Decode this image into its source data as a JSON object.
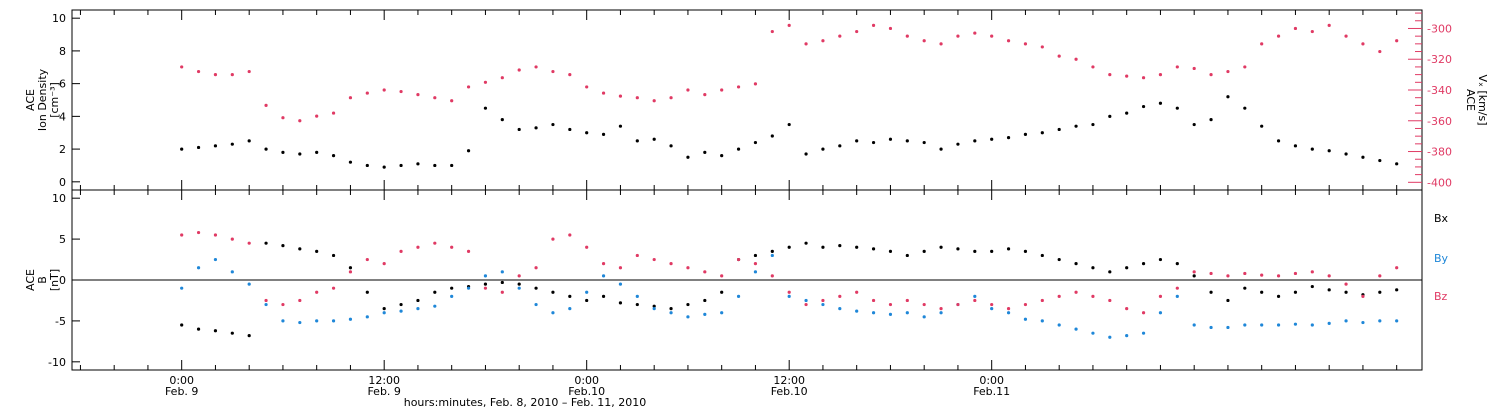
{
  "chart_data": [
    {
      "type": "scatter",
      "panel": "top",
      "ylabel_left": [
        "ACE",
        "Ion Density",
        "[cm⁻³]"
      ],
      "ylabel_right": [
        "ACE",
        "Vₓ [km/s]"
      ],
      "ylim_left": [
        -0.5,
        10.5
      ],
      "yticks_left": [
        "0",
        "2",
        "4",
        "6",
        "8",
        "10"
      ],
      "ylim_right": [
        -405,
        -288
      ],
      "yticks_right": [
        "-300",
        "-320",
        "-340",
        "-360",
        "-380",
        "-400"
      ],
      "grid": false,
      "series": [
        {
          "role": "ion density (left axis)",
          "color": "#000000",
          "x_hours": [
            0,
            1,
            2,
            3,
            4,
            5,
            6,
            7,
            8,
            9,
            10,
            11,
            12,
            13,
            14,
            15,
            16,
            17,
            18,
            19,
            20,
            21,
            22,
            23,
            24,
            25,
            26,
            27,
            28,
            29,
            30,
            31,
            32,
            33,
            34,
            35,
            36,
            37,
            38,
            39,
            40,
            41,
            42,
            43,
            44,
            45,
            46,
            47,
            48,
            49,
            50,
            51,
            52,
            53,
            54,
            55,
            56,
            57,
            58,
            59,
            60,
            61,
            62,
            63,
            64,
            65,
            66,
            67,
            68,
            69,
            70,
            71,
            72
          ],
          "values": [
            2.0,
            2.1,
            2.2,
            2.3,
            2.5,
            2.0,
            1.8,
            1.7,
            1.8,
            1.6,
            1.2,
            1.0,
            0.9,
            1.0,
            1.1,
            1.0,
            1.0,
            1.9,
            4.5,
            3.8,
            3.2,
            3.3,
            3.5,
            3.2,
            3.0,
            2.9,
            3.4,
            2.5,
            2.6,
            2.2,
            1.5,
            1.8,
            1.6,
            2.0,
            2.4,
            2.8,
            3.5,
            1.7,
            2.0,
            2.2,
            2.5,
            2.4,
            2.6,
            2.5,
            2.4,
            2.0,
            2.3,
            2.5,
            2.6,
            2.7,
            2.9,
            3.0,
            3.2,
            3.4,
            3.5,
            4.0,
            4.2,
            4.6,
            4.8,
            4.5,
            3.5,
            3.8,
            5.2,
            4.5,
            3.4,
            2.5,
            2.2,
            2.0,
            1.9,
            1.7,
            1.5,
            1.3,
            1.1
          ]
        },
        {
          "role": "Vx (right axis)",
          "color": "#e03a64",
          "x_hours": [
            0,
            1,
            2,
            3,
            4,
            5,
            6,
            7,
            8,
            9,
            10,
            11,
            12,
            13,
            14,
            15,
            16,
            17,
            18,
            19,
            20,
            21,
            22,
            23,
            24,
            25,
            26,
            27,
            28,
            29,
            30,
            31,
            32,
            33,
            34,
            35,
            36,
            37,
            38,
            39,
            40,
            41,
            42,
            43,
            44,
            45,
            46,
            47,
            48,
            49,
            50,
            51,
            52,
            53,
            54,
            55,
            56,
            57,
            58,
            59,
            60,
            61,
            62,
            63,
            64,
            65,
            66,
            67,
            68,
            69,
            70,
            71,
            72
          ],
          "values": [
            -325,
            -328,
            -330,
            -330,
            -328,
            -350,
            -358,
            -360,
            -357,
            -355,
            -345,
            -342,
            -340,
            -341,
            -343,
            -345,
            -347,
            -338,
            -335,
            -332,
            -327,
            -325,
            -328,
            -330,
            -338,
            -342,
            -344,
            -345,
            -347,
            -345,
            -340,
            -343,
            -340,
            -338,
            -336,
            -302,
            -298,
            -310,
            -308,
            -305,
            -302,
            -298,
            -300,
            -305,
            -308,
            -310,
            -305,
            -303,
            -305,
            -308,
            -310,
            -312,
            -318,
            -320,
            -325,
            -330,
            -331,
            -332,
            -330,
            -325,
            -326,
            -330,
            -328,
            -325,
            -310,
            -305,
            -300,
            -302,
            -298,
            -305,
            -310,
            -315,
            -308
          ]
        }
      ]
    },
    {
      "type": "scatter",
      "panel": "bottom",
      "ylabel": [
        "ACE",
        "B",
        "[nT]"
      ],
      "ylim": [
        -11,
        11
      ],
      "yticks": [
        "10",
        "5",
        "0",
        "-5",
        "-10"
      ],
      "zero_line": true,
      "grid": false,
      "legend_position": "right",
      "series": [
        {
          "name": "Bx",
          "color": "#000000",
          "x_hours": [
            0,
            1,
            2,
            3,
            4,
            5,
            6,
            7,
            8,
            9,
            10,
            11,
            12,
            13,
            14,
            15,
            16,
            17,
            18,
            19,
            20,
            21,
            22,
            23,
            24,
            25,
            26,
            27,
            28,
            29,
            30,
            31,
            32,
            33,
            34,
            35,
            36,
            37,
            38,
            39,
            40,
            41,
            42,
            43,
            44,
            45,
            46,
            47,
            48,
            49,
            50,
            51,
            52,
            53,
            54,
            55,
            56,
            57,
            58,
            59,
            60,
            61,
            62,
            63,
            64,
            65,
            66,
            67,
            68,
            69,
            70,
            71,
            72
          ],
          "values": [
            -5.5,
            -6.0,
            -6.2,
            -6.5,
            -6.8,
            4.5,
            4.2,
            3.8,
            3.5,
            3.0,
            1.5,
            -1.5,
            -3.5,
            -3.0,
            -2.5,
            -1.5,
            -1.0,
            -0.8,
            -0.5,
            -0.3,
            -0.5,
            -1.0,
            -1.5,
            -2.0,
            -2.5,
            -2.0,
            -2.8,
            -3.0,
            -3.2,
            -3.5,
            -3.0,
            -2.5,
            -1.5,
            2.5,
            3.0,
            3.5,
            4.0,
            4.5,
            4.0,
            4.2,
            4.0,
            3.8,
            3.5,
            3.0,
            3.5,
            4.0,
            3.8,
            3.5,
            3.5,
            3.8,
            3.5,
            3.0,
            2.5,
            2.0,
            1.5,
            1.0,
            1.5,
            2.0,
            2.5,
            2.0,
            0.5,
            -1.5,
            -2.5,
            -1.0,
            -1.5,
            -2.0,
            -1.5,
            -0.8,
            -1.2,
            -1.5,
            -1.8,
            -1.5,
            -1.2
          ]
        },
        {
          "name": "By",
          "color": "#1f87d8",
          "x_hours": [
            0,
            1,
            2,
            3,
            4,
            5,
            6,
            7,
            8,
            9,
            10,
            11,
            12,
            13,
            14,
            15,
            16,
            17,
            18,
            19,
            20,
            21,
            22,
            23,
            24,
            25,
            26,
            27,
            28,
            29,
            30,
            31,
            32,
            33,
            34,
            35,
            36,
            37,
            38,
            39,
            40,
            41,
            42,
            43,
            44,
            45,
            46,
            47,
            48,
            49,
            50,
            51,
            52,
            53,
            54,
            55,
            56,
            57,
            58,
            59,
            60,
            61,
            62,
            63,
            64,
            65,
            66,
            67,
            68,
            69,
            70,
            71,
            72
          ],
          "values": [
            -1.0,
            1.5,
            2.5,
            1.0,
            -0.5,
            -3.0,
            -5.0,
            -5.2,
            -5.0,
            -5.0,
            -4.8,
            -4.5,
            -4.0,
            -3.8,
            -3.5,
            -3.2,
            -2.0,
            -1.0,
            0.5,
            1.0,
            -1.0,
            -3.0,
            -4.0,
            -3.5,
            -1.5,
            0.5,
            -0.5,
            -2.0,
            -3.5,
            -4.0,
            -4.5,
            -4.2,
            -4.0,
            -2.0,
            1.0,
            3.0,
            -2.0,
            -2.5,
            -3.0,
            -3.5,
            -3.8,
            -4.0,
            -4.2,
            -4.0,
            -4.5,
            -4.0,
            -3.0,
            -2.0,
            -3.5,
            -4.0,
            -4.8,
            -5.0,
            -5.5,
            -6.0,
            -6.5,
            -7.0,
            -6.8,
            -6.5,
            -4.0,
            -2.0,
            -5.5,
            -5.8,
            -5.8,
            -5.5,
            -5.5,
            -5.5,
            -5.4,
            -5.5,
            -5.3,
            -5.0,
            -5.2,
            -5.0,
            -5.0
          ]
        },
        {
          "name": "Bz",
          "color": "#e03a64",
          "x_hours": [
            0,
            1,
            2,
            3,
            4,
            5,
            6,
            7,
            8,
            9,
            10,
            11,
            12,
            13,
            14,
            15,
            16,
            17,
            18,
            19,
            20,
            21,
            22,
            23,
            24,
            25,
            26,
            27,
            28,
            29,
            30,
            31,
            32,
            33,
            34,
            35,
            36,
            37,
            38,
            39,
            40,
            41,
            42,
            43,
            44,
            45,
            46,
            47,
            48,
            49,
            50,
            51,
            52,
            53,
            54,
            55,
            56,
            57,
            58,
            59,
            60,
            61,
            62,
            63,
            64,
            65,
            66,
            67,
            68,
            69,
            70,
            71,
            72
          ],
          "values": [
            5.5,
            5.8,
            5.5,
            5.0,
            4.5,
            -2.5,
            -3.0,
            -2.5,
            -1.5,
            -1.0,
            1.0,
            2.5,
            2.0,
            3.5,
            4.0,
            4.5,
            4.0,
            3.5,
            -1.0,
            -1.5,
            0.5,
            1.5,
            5.0,
            5.5,
            4.0,
            2.0,
            1.5,
            3.0,
            2.5,
            2.0,
            1.5,
            1.0,
            0.5,
            2.5,
            2.0,
            0.5,
            -1.5,
            -3.0,
            -2.5,
            -2.0,
            -1.5,
            -2.5,
            -3.0,
            -2.5,
            -3.0,
            -3.5,
            -3.0,
            -2.5,
            -3.0,
            -3.5,
            -3.0,
            -2.5,
            -2.0,
            -1.5,
            -2.0,
            -2.5,
            -3.5,
            -4.0,
            -2.0,
            -1.0,
            1.0,
            0.8,
            0.5,
            0.8,
            0.6,
            0.5,
            0.8,
            1.0,
            0.5,
            -0.5,
            -2.0,
            0.5,
            1.5
          ]
        }
      ]
    }
  ],
  "x_axis": {
    "range_hours": [
      -6.5,
      73.5
    ],
    "major_ticks": [
      {
        "hours": 0,
        "time": "0:00",
        "date": "Feb. 9"
      },
      {
        "hours": 12,
        "time": "12:00",
        "date": "Feb. 9"
      },
      {
        "hours": 24,
        "time": "0:00",
        "date": "Feb.10"
      },
      {
        "hours": 36,
        "time": "12:00",
        "date": "Feb.10"
      },
      {
        "hours": 48,
        "time": "0:00",
        "date": "Feb.11"
      }
    ],
    "xlabel": "hours:minutes, Feb. 8, 2010 – Feb. 11, 2010"
  }
}
